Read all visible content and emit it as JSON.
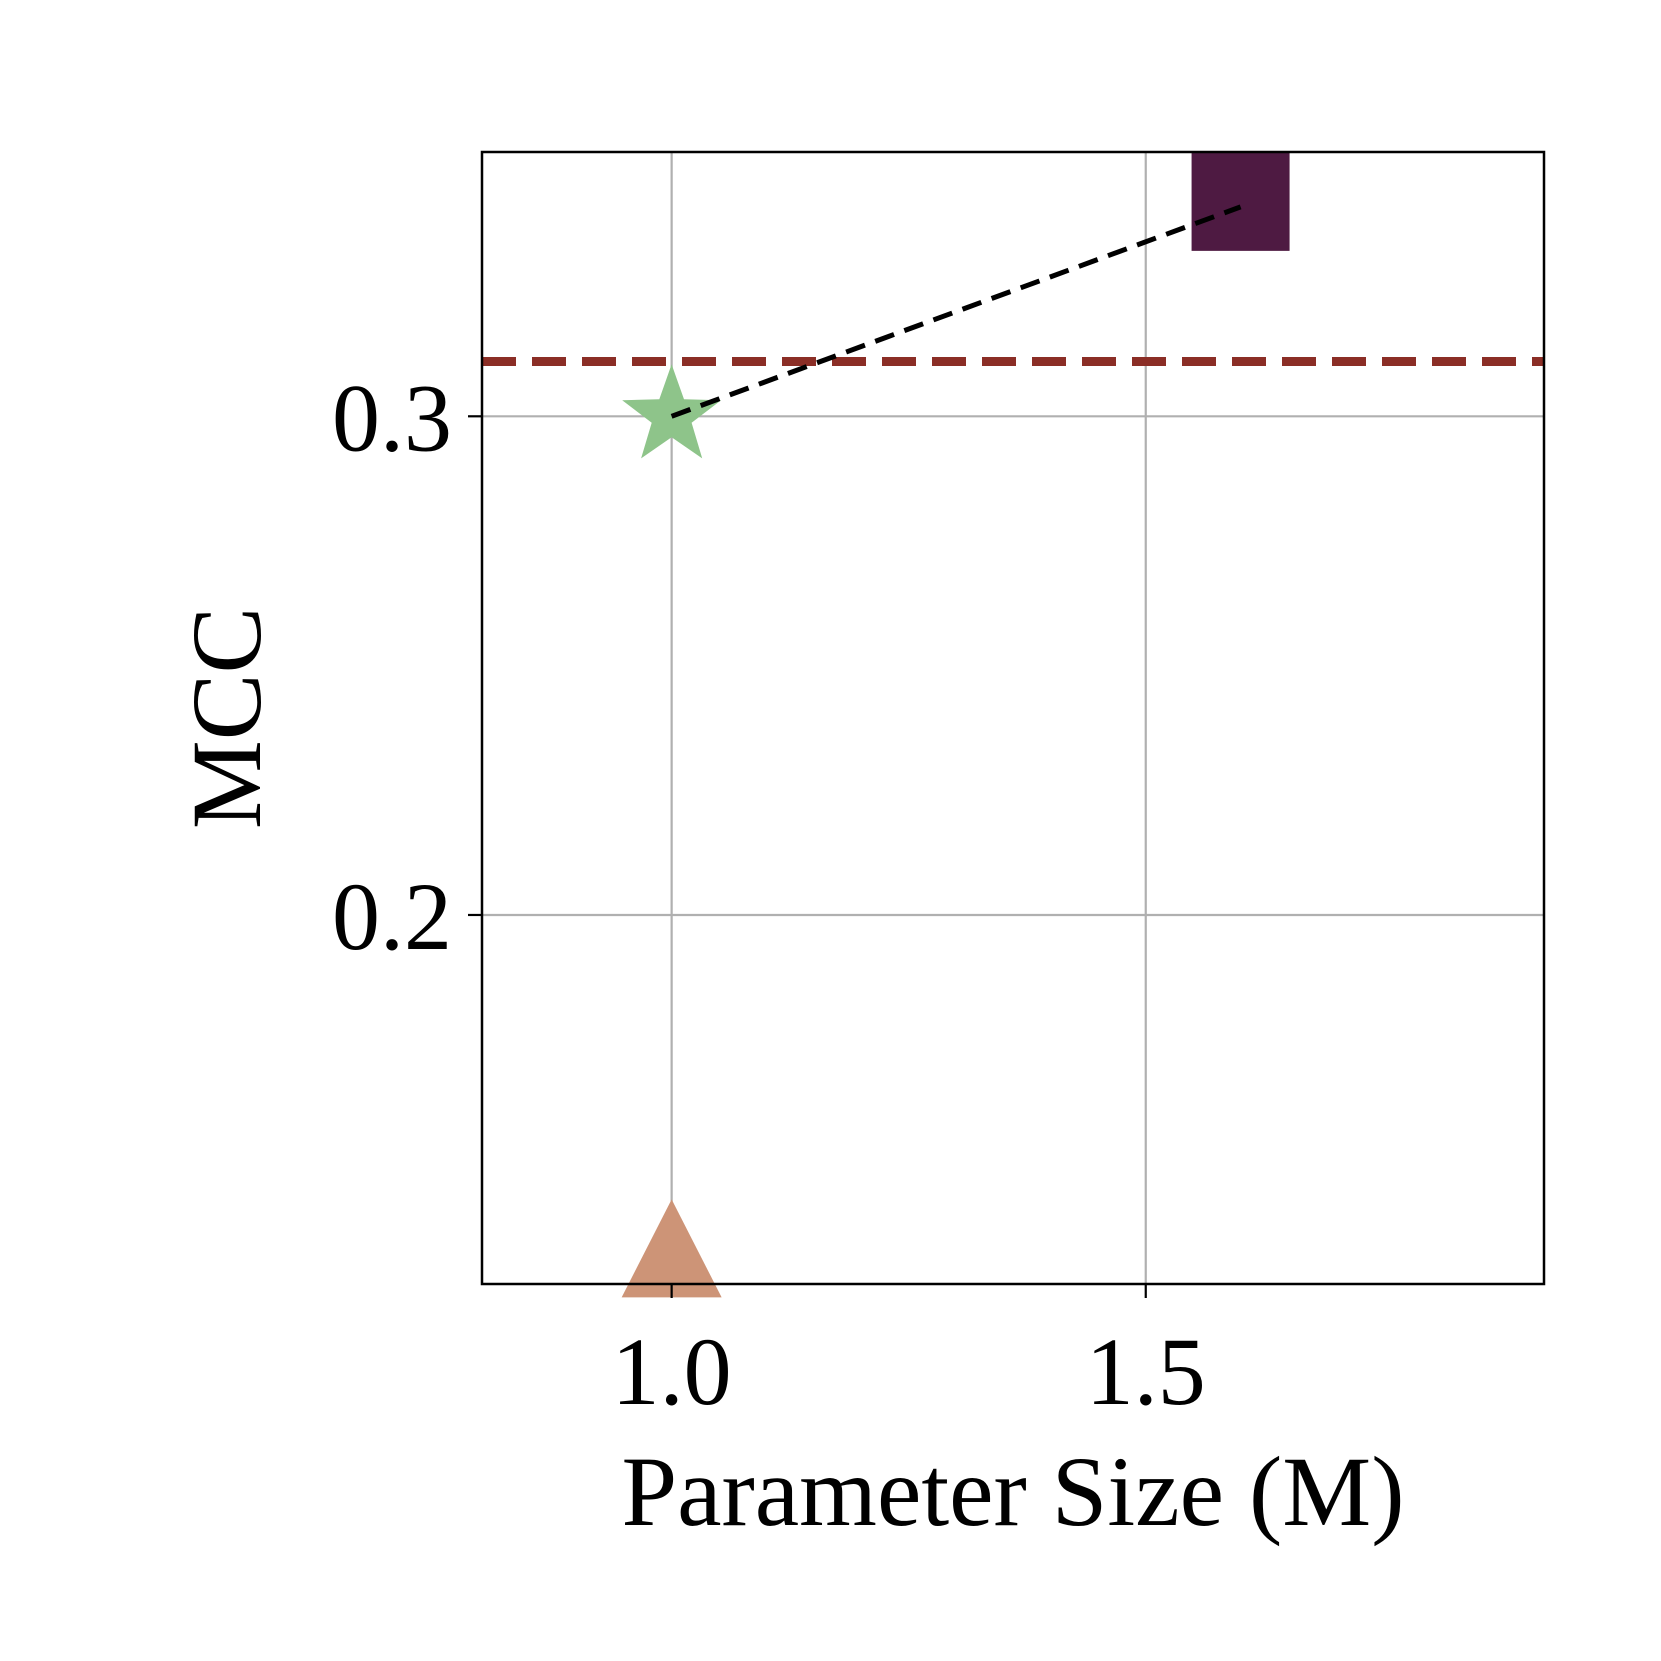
{
  "chart_data": {
    "type": "scatter",
    "title": "",
    "xlabel": "Parameter Size (M)",
    "ylabel": "MCC",
    "xlim": [
      0.8,
      1.92
    ],
    "ylim": [
      0.126,
      0.353
    ],
    "xticks": [
      {
        "value": 1.0,
        "label": "1.0"
      },
      {
        "value": 1.5,
        "label": "1.5"
      }
    ],
    "yticks": [
      {
        "value": 0.2,
        "label": "0.2"
      },
      {
        "value": 0.3,
        "label": "0.3"
      }
    ],
    "grid": true,
    "legend": "none",
    "points": [
      {
        "x": 1.6,
        "y": 0.343,
        "marker": "square",
        "color": "#4e1a42"
      },
      {
        "x": 1.0,
        "y": 0.3,
        "marker": "star",
        "color": "#8ec48a"
      },
      {
        "x": 1.0,
        "y": 0.13,
        "marker": "triangle",
        "color": "#cd9477"
      }
    ],
    "trend_line": {
      "x": [
        1.0,
        1.6
      ],
      "y": [
        0.3,
        0.342
      ],
      "color": "#000000",
      "style": "dashed"
    },
    "reference_line": {
      "y": 0.311,
      "color": "#8b2e26",
      "style": "dashed"
    }
  }
}
